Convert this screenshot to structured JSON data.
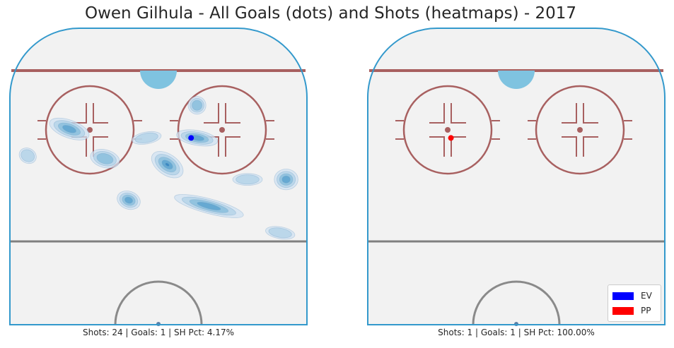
{
  "title": "Owen Gilhula - All Goals (dots) and Shots (heatmaps) - 2017",
  "chart_data": [
    {
      "type": "heatmap",
      "caption": "Shots: 24 | Goals: 1 | SH Pct: 4.17%",
      "shots": 24,
      "goals": 1,
      "sh_pct": "4.17%",
      "goal_dots": [
        {
          "strength": "EV",
          "x": 0.61,
          "y": 0.37
        }
      ],
      "density_blobs": [
        {
          "x": 0.2,
          "y": 0.34,
          "rx": 0.07,
          "ry": 0.03,
          "rot": 20,
          "level": 3
        },
        {
          "x": 0.32,
          "y": 0.44,
          "rx": 0.05,
          "ry": 0.03,
          "rot": 15,
          "level": 2
        },
        {
          "x": 0.53,
          "y": 0.46,
          "rx": 0.06,
          "ry": 0.035,
          "rot": 35,
          "level": 4
        },
        {
          "x": 0.63,
          "y": 0.37,
          "rx": 0.07,
          "ry": 0.025,
          "rot": 10,
          "level": 3
        },
        {
          "x": 0.63,
          "y": 0.26,
          "rx": 0.03,
          "ry": 0.03,
          "rot": 0,
          "level": 2
        },
        {
          "x": 0.4,
          "y": 0.58,
          "rx": 0.04,
          "ry": 0.03,
          "rot": 20,
          "level": 3
        },
        {
          "x": 0.67,
          "y": 0.6,
          "rx": 0.12,
          "ry": 0.025,
          "rot": 15,
          "level": 3
        },
        {
          "x": 0.8,
          "y": 0.51,
          "rx": 0.05,
          "ry": 0.02,
          "rot": 0,
          "level": 1
        },
        {
          "x": 0.93,
          "y": 0.51,
          "rx": 0.04,
          "ry": 0.035,
          "rot": 0,
          "level": 3
        },
        {
          "x": 0.91,
          "y": 0.69,
          "rx": 0.05,
          "ry": 0.02,
          "rot": 10,
          "level": 1
        },
        {
          "x": 0.06,
          "y": 0.43,
          "rx": 0.03,
          "ry": 0.025,
          "rot": 30,
          "level": 1
        },
        {
          "x": 0.46,
          "y": 0.37,
          "rx": 0.05,
          "ry": 0.02,
          "rot": -10,
          "level": 1
        }
      ]
    },
    {
      "type": "heatmap",
      "caption": "Shots: 1 | Goals: 1 | SH Pct: 100.00%",
      "shots": 1,
      "goals": 1,
      "sh_pct": "100.00%",
      "goal_dots": [
        {
          "strength": "PP",
          "x": 0.28,
          "y": 0.37
        }
      ],
      "density_blobs": []
    }
  ],
  "legend": [
    {
      "label": "EV",
      "color": "#0000ff"
    },
    {
      "label": "PP",
      "color": "#ff0000"
    }
  ],
  "colors": {
    "rink_fill": "#f2f2f2",
    "boards": "#3399cc",
    "red_line": "#a86060",
    "blue_line": "#808080",
    "crease": "#7fc3e0",
    "heat_levels": [
      "#d0e1f2",
      "#b0d2e7",
      "#84bcdb",
      "#57a0ce",
      "#2f7fbc"
    ]
  }
}
